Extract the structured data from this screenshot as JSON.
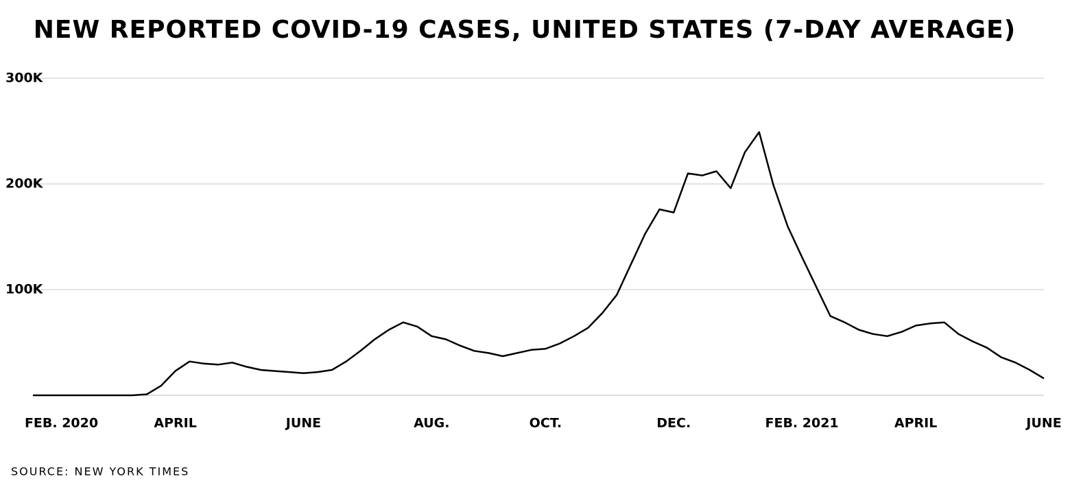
{
  "chart_data": {
    "type": "line",
    "title": "New reported COVID-19 cases, United States (7-day average)",
    "source": "Source: New York Times",
    "categories": [
      null,
      null,
      "Feb. 2020",
      null,
      null,
      null,
      null,
      null,
      null,
      null,
      "April",
      null,
      null,
      null,
      null,
      null,
      null,
      null,
      null,
      "June",
      null,
      null,
      null,
      null,
      null,
      null,
      null,
      null,
      "Aug.",
      null,
      null,
      null,
      null,
      null,
      null,
      null,
      "Oct.",
      null,
      null,
      null,
      null,
      null,
      null,
      null,
      null,
      "Dec.",
      null,
      null,
      null,
      null,
      null,
      null,
      null,
      null,
      "Feb. 2021",
      null,
      null,
      null,
      null,
      null,
      null,
      null,
      "April",
      null,
      null,
      null,
      null,
      null,
      null,
      null,
      null,
      "June"
    ],
    "series": [
      {
        "name": "Cases",
        "color": "#000000",
        "values": [
          0,
          0,
          0,
          0,
          0,
          0,
          0,
          0,
          1000,
          9000,
          23000,
          32000,
          30000,
          29000,
          31000,
          27000,
          24000,
          23000,
          22000,
          21000,
          22000,
          24000,
          32000,
          42000,
          53000,
          62000,
          69000,
          65000,
          56000,
          53000,
          47000,
          42000,
          40000,
          37000,
          40000,
          43000,
          44000,
          49000,
          56000,
          64000,
          78000,
          95000,
          124000,
          153000,
          176000,
          173000,
          210000,
          208000,
          212000,
          196000,
          230000,
          249000,
          199000,
          160000,
          131000,
          103000,
          75000,
          69000,
          62000,
          58000,
          56000,
          60000,
          66000,
          68000,
          69000,
          58000,
          51000,
          45000,
          36000,
          31000,
          24000,
          16000
        ]
      }
    ],
    "ylim": [
      0,
      300000
    ],
    "yticks": [
      {
        "value": 100000,
        "label": "100K"
      },
      {
        "value": 200000,
        "label": "200K"
      },
      {
        "value": 300000,
        "label": "300K"
      }
    ],
    "grid": true
  }
}
